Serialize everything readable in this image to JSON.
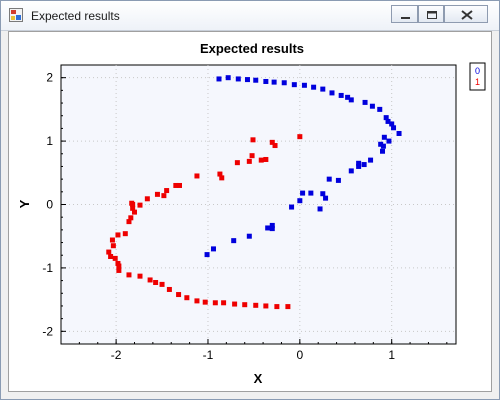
{
  "window": {
    "title": "Expected results",
    "controls": [
      "minimize-icon",
      "maximize-icon",
      "close-icon"
    ]
  },
  "colors": {
    "plot_bg": "#f5f7fd",
    "series_0": "#0000dd",
    "series_1": "#ee0000",
    "grid": "#c8c8c8"
  },
  "chart_data": {
    "type": "scatter",
    "title": "Expected results",
    "xlabel": "X",
    "ylabel": "Y",
    "xlim": [
      -2.6,
      1.7
    ],
    "ylim": [
      -2.2,
      2.2
    ],
    "xticks": [
      -2,
      -1,
      0,
      1
    ],
    "yticks": [
      -2,
      -1,
      0,
      1,
      2
    ],
    "grid": true,
    "legend_position": "top-right outside",
    "series": [
      {
        "name": "0",
        "color": "#0000dd",
        "points": [
          [
            -0.88,
            1.98
          ],
          [
            -0.78,
            2.0
          ],
          [
            -0.67,
            1.98
          ],
          [
            -0.57,
            1.97
          ],
          [
            -0.48,
            1.96
          ],
          [
            -0.37,
            1.94
          ],
          [
            -0.28,
            1.93
          ],
          [
            -0.17,
            1.92
          ],
          [
            -0.06,
            1.89
          ],
          [
            0.05,
            1.88
          ],
          [
            0.15,
            1.85
          ],
          [
            0.25,
            1.82
          ],
          [
            0.35,
            1.76
          ],
          [
            0.45,
            1.72
          ],
          [
            0.52,
            1.69
          ],
          [
            0.56,
            1.65
          ],
          [
            0.71,
            1.61
          ],
          [
            0.79,
            1.55
          ],
          [
            0.87,
            1.5
          ],
          [
            0.94,
            1.37
          ],
          [
            0.96,
            1.31
          ],
          [
            1.0,
            1.27
          ],
          [
            1.02,
            1.21
          ],
          [
            1.08,
            1.12
          ],
          [
            0.92,
            1.06
          ],
          [
            0.97,
            1.0
          ],
          [
            0.88,
            0.95
          ],
          [
            0.91,
            0.92
          ],
          [
            0.9,
            0.84
          ],
          [
            0.77,
            0.7
          ],
          [
            0.64,
            0.65
          ],
          [
            0.64,
            0.6
          ],
          [
            0.7,
            0.63
          ],
          [
            0.56,
            0.53
          ],
          [
            0.42,
            0.38
          ],
          [
            0.32,
            0.4
          ],
          [
            0.25,
            0.17
          ],
          [
            0.28,
            0.1
          ],
          [
            0.12,
            0.18
          ],
          [
            0.03,
            0.18
          ],
          [
            0.0,
            0.06
          ],
          [
            0.22,
            -0.07
          ],
          [
            -0.09,
            -0.04
          ],
          [
            -0.3,
            -0.33
          ],
          [
            -0.3,
            -0.38
          ],
          [
            -0.35,
            -0.37
          ],
          [
            -0.55,
            -0.5
          ],
          [
            -0.72,
            -0.57
          ],
          [
            -0.94,
            -0.7
          ],
          [
            -1.01,
            -0.79
          ]
        ]
      },
      {
        "name": "1",
        "color": "#ee0000",
        "points": [
          [
            -0.51,
            1.02
          ],
          [
            -0.3,
            0.98
          ],
          [
            -0.27,
            0.93
          ],
          [
            0.0,
            1.07
          ],
          [
            -0.52,
            0.77
          ],
          [
            -0.42,
            0.7
          ],
          [
            -0.37,
            0.71
          ],
          [
            -0.55,
            0.68
          ],
          [
            -0.68,
            0.66
          ],
          [
            -0.87,
            0.48
          ],
          [
            -0.85,
            0.42
          ],
          [
            -1.12,
            0.45
          ],
          [
            -1.31,
            0.3
          ],
          [
            -1.35,
            0.3
          ],
          [
            -1.45,
            0.22
          ],
          [
            -1.48,
            0.14
          ],
          [
            -1.55,
            0.16
          ],
          [
            -1.66,
            0.09
          ],
          [
            -1.74,
            -0.01
          ],
          [
            -1.8,
            -0.12
          ],
          [
            -1.82,
            -0.06
          ],
          [
            -1.82,
            0.0
          ],
          [
            -1.83,
            0.02
          ],
          [
            -1.84,
            -0.21
          ],
          [
            -1.86,
            -0.27
          ],
          [
            -1.9,
            -0.46
          ],
          [
            -1.98,
            -0.48
          ],
          [
            -2.04,
            -0.56
          ],
          [
            -2.03,
            -0.65
          ],
          [
            -2.08,
            -0.75
          ],
          [
            -2.06,
            -0.82
          ],
          [
            -2.01,
            -0.85
          ],
          [
            -1.98,
            -0.93
          ],
          [
            -1.97,
            -0.97
          ],
          [
            -1.97,
            -1.04
          ],
          [
            -1.86,
            -1.11
          ],
          [
            -1.74,
            -1.13
          ],
          [
            -1.63,
            -1.19
          ],
          [
            -1.57,
            -1.23
          ],
          [
            -1.5,
            -1.26
          ],
          [
            -1.42,
            -1.34
          ],
          [
            -1.32,
            -1.42
          ],
          [
            -1.23,
            -1.47
          ],
          [
            -1.12,
            -1.52
          ],
          [
            -1.03,
            -1.54
          ],
          [
            -0.92,
            -1.55
          ],
          [
            -0.83,
            -1.55
          ],
          [
            -0.71,
            -1.57
          ],
          [
            -0.6,
            -1.58
          ],
          [
            -0.48,
            -1.59
          ],
          [
            -0.37,
            -1.6
          ],
          [
            -0.25,
            -1.61
          ],
          [
            -0.13,
            -1.61
          ]
        ]
      }
    ]
  }
}
